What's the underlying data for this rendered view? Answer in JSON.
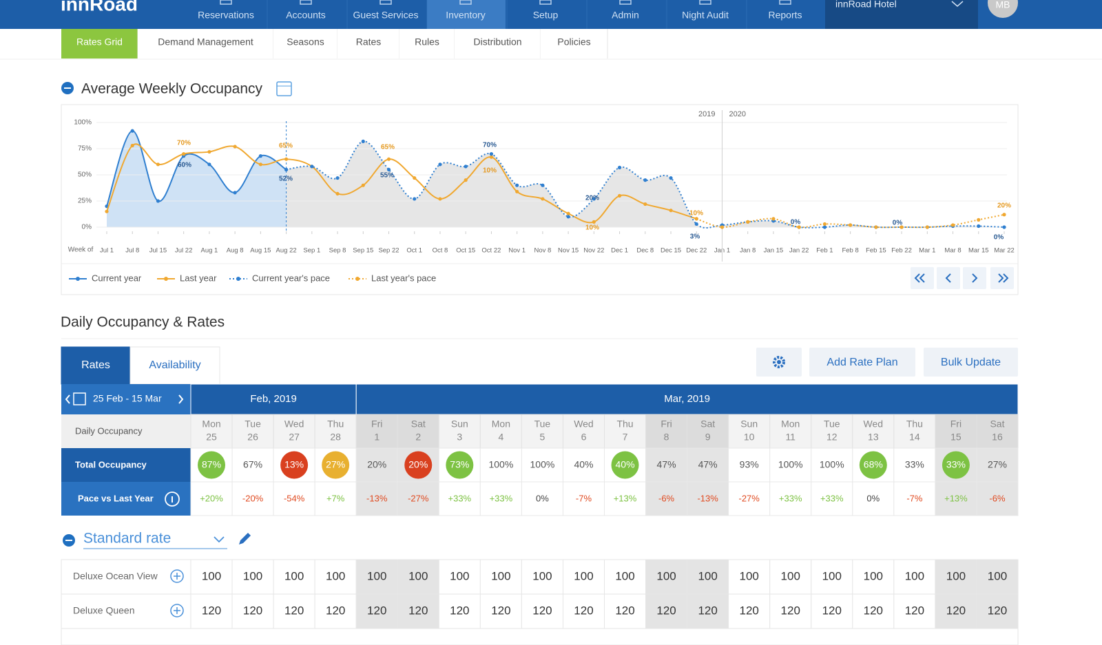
{
  "nav": {
    "logo": "innRoad",
    "items": [
      "Reservations",
      "Accounts",
      "Guest Services",
      "Inventory",
      "Setup",
      "Admin",
      "Night Audit",
      "Reports"
    ],
    "active": "Inventory",
    "hotel": "innRoad Hotel",
    "avatar": "MB"
  },
  "subnav": {
    "items": [
      "Rates Grid",
      "Demand Management",
      "Seasons",
      "Rates",
      "Rules",
      "Distribution",
      "Policies"
    ],
    "active": "Rates Grid"
  },
  "occupancy_section": {
    "title": "Average Weekly Occupancy"
  },
  "chart_data": {
    "type": "line",
    "x_label": "Week of",
    "categories": [
      "Jul 1",
      "Jul 8",
      "Jul 15",
      "Jul 22",
      "Aug 1",
      "Aug 8",
      "Aug 15",
      "Aug 22",
      "Sep 1",
      "Sep 8",
      "Sep 15",
      "Sep 22",
      "Oct 1",
      "Oct 8",
      "Oct 15",
      "Oct 22",
      "Nov 1",
      "Nov 8",
      "Nov 15",
      "Nov 22",
      "Dec 1",
      "Dec 8",
      "Dec 15",
      "Dec 22",
      "Jan 1",
      "Jan 8",
      "Jan 15",
      "Jan 22",
      "Feb 1",
      "Feb 8",
      "Feb 15",
      "Feb 22",
      "Mar 1",
      "Mar 8",
      "Mar 15",
      "Mar 22"
    ],
    "ylim": [
      0,
      100
    ],
    "yticks": [
      {
        "value": 0,
        "label": "0%"
      },
      {
        "value": 25,
        "label": "25%"
      },
      {
        "value": 50,
        "label": "50%"
      },
      {
        "value": 75,
        "label": "75%"
      },
      {
        "value": 100,
        "label": "100%"
      }
    ],
    "grid": true,
    "year_markers": [
      "2019",
      "2020"
    ],
    "series": [
      {
        "name": "Current year",
        "color": "#2f7fd0",
        "fill": "#cfe2f5",
        "style": "solid",
        "values": [
          20,
          92,
          25,
          68,
          60,
          33,
          68,
          55,
          null,
          null,
          null,
          null,
          null,
          null,
          null,
          null,
          null,
          null,
          null,
          null,
          null,
          null,
          null,
          null,
          null,
          null,
          null,
          null,
          null,
          null,
          null,
          null,
          null,
          null,
          null,
          null
        ]
      },
      {
        "name": "Last year",
        "color": "#f0a830",
        "style": "solid",
        "values": [
          15,
          78,
          60,
          70,
          72,
          77,
          60,
          65,
          58,
          32,
          40,
          65,
          47,
          27,
          45,
          67,
          34,
          27,
          13,
          5,
          30,
          22,
          16,
          8,
          null,
          null,
          null,
          null,
          null,
          null,
          null,
          null,
          null,
          null,
          null,
          null
        ]
      },
      {
        "name": "Current year's pace",
        "color": "#2f7fd0",
        "fill": "#e6e6e6",
        "style": "dotted",
        "values": [
          null,
          null,
          null,
          null,
          null,
          null,
          null,
          55,
          58,
          47,
          82,
          55,
          27,
          60,
          58,
          70,
          40,
          40,
          10,
          27,
          57,
          45,
          47,
          3,
          2,
          5,
          6,
          0,
          0,
          2,
          0,
          0,
          0,
          1,
          1,
          0
        ]
      },
      {
        "name": "Last year's pace",
        "color": "#f0a830",
        "style": "dotted",
        "values": [
          null,
          null,
          null,
          null,
          null,
          null,
          null,
          null,
          null,
          null,
          null,
          null,
          null,
          null,
          null,
          null,
          null,
          null,
          null,
          null,
          null,
          null,
          null,
          8,
          0,
          5,
          8,
          0,
          3,
          2,
          0,
          0,
          0,
          2,
          7,
          12
        ]
      }
    ],
    "annotations": [
      {
        "text": "70%",
        "color": "#e59a22"
      },
      {
        "text": "60%",
        "color": "#2a5a92"
      },
      {
        "text": "65%",
        "color": "#e59a22"
      },
      {
        "text": "52%",
        "color": "#2a5a92"
      },
      {
        "text": "65%",
        "color": "#e59a22"
      },
      {
        "text": "55%",
        "color": "#2a5a92"
      },
      {
        "text": "70%",
        "color": "#2a5a92"
      },
      {
        "text": "10%",
        "color": "#e59a22"
      },
      {
        "text": "20%",
        "color": "#2a5a92"
      },
      {
        "text": "10%",
        "color": "#e59a22"
      },
      {
        "text": "10%",
        "color": "#e59a22"
      },
      {
        "text": "3%",
        "color": "#2a5a92"
      },
      {
        "text": "0%",
        "color": "#2a5a92"
      },
      {
        "text": "0%",
        "color": "#2a5a92"
      },
      {
        "text": "20%",
        "color": "#e59a22"
      },
      {
        "text": "0%",
        "color": "#2a5a92"
      }
    ]
  },
  "daily": {
    "title": "Daily Occupancy & Rates",
    "tabs": [
      "Rates",
      "Availability"
    ],
    "active_tab": "Rates",
    "buttons": [
      "Add Rate Plan",
      "Bulk Update"
    ],
    "date_range": "25 Feb - 15 Mar",
    "months": [
      {
        "label": "Feb, 2019",
        "days": [
          {
            "name": "Mon",
            "date": 25
          },
          {
            "name": "Tue",
            "date": 26
          },
          {
            "name": "Wed",
            "date": 27
          },
          {
            "name": "Thu",
            "date": 28
          }
        ]
      },
      {
        "label": "Mar, 2019",
        "days": [
          {
            "name": "Fri",
            "date": 1,
            "weekend": true
          },
          {
            "name": "Sat",
            "date": 2,
            "weekend": true
          },
          {
            "name": "Sun",
            "date": 3
          },
          {
            "name": "Mon",
            "date": 4
          },
          {
            "name": "Tue",
            "date": 5
          },
          {
            "name": "Wed",
            "date": 6
          },
          {
            "name": "Thu",
            "date": 7
          },
          {
            "name": "Fri",
            "date": 8,
            "weekend": true
          },
          {
            "name": "Sat",
            "date": 9,
            "weekend": true
          },
          {
            "name": "Sun",
            "date": 10
          },
          {
            "name": "Mon",
            "date": 11
          },
          {
            "name": "Tue",
            "date": 12
          },
          {
            "name": "Wed",
            "date": 13
          },
          {
            "name": "Thu",
            "date": 14
          },
          {
            "name": "Fri",
            "date": 15,
            "weekend": true
          },
          {
            "name": "Sat",
            "date": 16,
            "weekend": true
          }
        ]
      }
    ],
    "header_label": "Daily Occupancy",
    "total_label": "Total Occupancy",
    "total": [
      {
        "value": "87%",
        "badge": "#7dc243"
      },
      {
        "value": "67%"
      },
      {
        "value": "13%",
        "badge": "#d9401f"
      },
      {
        "value": "27%",
        "badge": "#e8b030"
      },
      {
        "value": "20%"
      },
      {
        "value": "20%",
        "badge": "#d9401f"
      },
      {
        "value": "73%",
        "badge": "#7dc243"
      },
      {
        "value": "100%"
      },
      {
        "value": "100%"
      },
      {
        "value": "40%"
      },
      {
        "value": "40%",
        "badge": "#7dc243"
      },
      {
        "value": "47%"
      },
      {
        "value": "47%"
      },
      {
        "value": "93%"
      },
      {
        "value": "100%"
      },
      {
        "value": "100%"
      },
      {
        "value": "68%",
        "badge": "#7dc243"
      },
      {
        "value": "33%"
      },
      {
        "value": "33%",
        "badge": "#7dc243"
      },
      {
        "value": "27%"
      }
    ],
    "pace_label": "Pace vs Last Year",
    "pace": [
      "+20%",
      "-20%",
      "-54%",
      "+7%",
      "-13%",
      "-27%",
      "+33%",
      "+33%",
      "0%",
      "-7%",
      "+13%",
      "-6%",
      "-13%",
      "-27%",
      "+33%",
      "+33%",
      "0%",
      "-7%",
      "+13%",
      "-6%"
    ],
    "rate_plan": "Standard rate",
    "rooms": [
      {
        "name": "Deluxe Ocean View",
        "rates": [
          100,
          100,
          100,
          100,
          100,
          100,
          100,
          100,
          100,
          100,
          100,
          100,
          100,
          100,
          100,
          100,
          100,
          100,
          100,
          100
        ]
      },
      {
        "name": "Deluxe Queen",
        "rates": [
          120,
          120,
          120,
          120,
          120,
          120,
          120,
          120,
          120,
          120,
          120,
          120,
          120,
          120,
          120,
          120,
          120,
          120,
          120,
          120
        ]
      }
    ]
  }
}
